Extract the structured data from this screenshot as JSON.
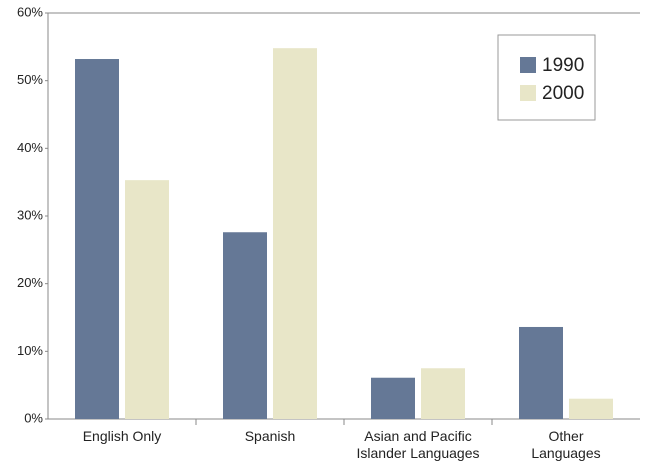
{
  "chart_data": {
    "type": "bar",
    "categories": [
      "English Only",
      "Spanish",
      "Asian and Pacific\nIslander Languages",
      "Other\nLanguages"
    ],
    "series": [
      {
        "name": "1990",
        "color": "#657896",
        "values": [
          53.2,
          27.6,
          6.1,
          13.6
        ]
      },
      {
        "name": "2000",
        "color": "#e8e6c8",
        "values": [
          35.3,
          54.8,
          7.5,
          3.0
        ]
      }
    ],
    "ylim": [
      0,
      60
    ],
    "yticks": [
      {
        "value": 0,
        "label": "0%"
      },
      {
        "value": 10,
        "label": "10%"
      },
      {
        "value": 20,
        "label": "20%"
      },
      {
        "value": 30,
        "label": "30%"
      },
      {
        "value": 40,
        "label": "40%"
      },
      {
        "value": 50,
        "label": "50%"
      },
      {
        "value": 60,
        "label": "60%"
      }
    ],
    "grid": false,
    "legend": "upper right"
  }
}
